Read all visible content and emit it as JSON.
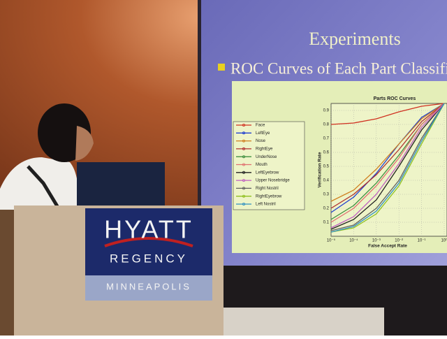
{
  "slide": {
    "title": "Experiments",
    "bullet": "ROC Curves of Each Part Classifie"
  },
  "podium": {
    "brand": "HYATT",
    "line2": "REGENCY",
    "city": "MINNEAPOLIS"
  },
  "chart_data": {
    "type": "line",
    "title": "Parts ROC Curves",
    "x_label": "False Accept Rate",
    "y_label": "Verification Rate",
    "log_x": true,
    "grid": true,
    "x": [
      1e-05,
      0.0001,
      0.001,
      0.01,
      0.1,
      1
    ],
    "xlim": [
      1e-05,
      1
    ],
    "xticks": [
      {
        "value": 1e-05,
        "label": "10⁻⁵"
      },
      {
        "value": 0.0001,
        "label": "10⁻⁴"
      },
      {
        "value": 0.001,
        "label": "10⁻³"
      },
      {
        "value": 0.01,
        "label": "10⁻²"
      },
      {
        "value": 0.1,
        "label": "10⁻¹"
      },
      {
        "value": 1,
        "label": "10⁰"
      }
    ],
    "ylim": [
      0,
      0.95
    ],
    "yticks": [
      0.1,
      0.2,
      0.3,
      0.4,
      0.5,
      0.6,
      0.7,
      0.8,
      0.9
    ],
    "series": [
      {
        "name": "Face",
        "color": "#d03020",
        "values": [
          0.8,
          0.81,
          0.84,
          0.89,
          0.93,
          0.95
        ]
      },
      {
        "name": "LeftEye",
        "color": "#2040d0",
        "values": [
          0.17,
          0.28,
          0.45,
          0.66,
          0.85,
          0.95
        ]
      },
      {
        "name": "Nose",
        "color": "#d08020",
        "values": [
          0.25,
          0.33,
          0.48,
          0.66,
          0.84,
          0.95
        ]
      },
      {
        "name": "RightEye",
        "color": "#b03030",
        "values": [
          0.2,
          0.3,
          0.44,
          0.62,
          0.82,
          0.95
        ]
      },
      {
        "name": "UnderNose",
        "color": "#409040",
        "values": [
          0.12,
          0.22,
          0.38,
          0.58,
          0.8,
          0.95
        ]
      },
      {
        "name": "Mouth",
        "color": "#e07070",
        "values": [
          0.1,
          0.2,
          0.36,
          0.56,
          0.8,
          0.95
        ]
      },
      {
        "name": "LeftEyebrow",
        "color": "#202020",
        "values": [
          0.05,
          0.12,
          0.26,
          0.5,
          0.76,
          0.95
        ]
      },
      {
        "name": "Upper Nosebridge",
        "color": "#c060c0",
        "values": [
          0.06,
          0.14,
          0.3,
          0.52,
          0.78,
          0.95
        ]
      },
      {
        "name": "Right Nostril",
        "color": "#606060",
        "values": [
          0.04,
          0.08,
          0.2,
          0.4,
          0.7,
          0.95
        ]
      },
      {
        "name": "RightEyebrow",
        "color": "#90c020",
        "values": [
          0.03,
          0.06,
          0.16,
          0.36,
          0.66,
          0.95
        ]
      },
      {
        "name": "Left Nostril",
        "color": "#3090c0",
        "values": [
          0.03,
          0.07,
          0.18,
          0.38,
          0.68,
          0.95
        ]
      }
    ]
  }
}
